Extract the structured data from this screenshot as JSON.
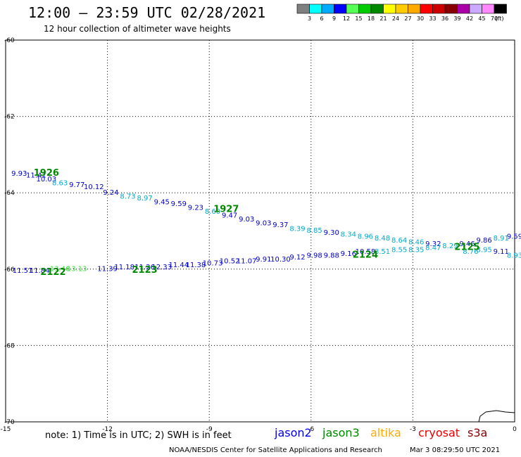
{
  "title": "12:00 – 23:59 UTC 02/28/2021",
  "subtitle": "12 hour collection of altimeter wave heights",
  "note": "note: 1) Time is in UTC; 2) SWH is in feet",
  "credit": "NOAA/NESDIS Center for Satellite Applications and Research",
  "timestamp": "Mar  3 08:29:50 UTC 2021",
  "color_scale": {
    "labels": [
      "3",
      "6",
      "9",
      "12",
      "15",
      "18",
      "21",
      "24",
      "27",
      "30",
      "33",
      "36",
      "39",
      "42",
      "45",
      "70"
    ],
    "unit": "(ft)",
    "colors": [
      "#7f7f7f",
      "#00ffff",
      "#00aaff",
      "#0000ff",
      "#55ff55",
      "#00cc00",
      "#008800",
      "#ffff00",
      "#ffcc00",
      "#ffaa00",
      "#ff0000",
      "#cc0000",
      "#880000",
      "#aa00aa",
      "#ccaaff",
      "#ff88ff",
      "#000000"
    ]
  },
  "satellites": [
    {
      "name": "jason2",
      "color": "#0000ee"
    },
    {
      "name": "jason3",
      "color": "#008800"
    },
    {
      "name": "altika",
      "color": "#ffaa00"
    },
    {
      "name": "cryosat",
      "color": "#ee0000"
    },
    {
      "name": "s3a",
      "color": "#880000"
    }
  ],
  "map": {
    "lon_range": [
      -15,
      0
    ],
    "lat_range": [
      -70,
      -60
    ],
    "lon_ticks": [
      "-15",
      "-12",
      "-9",
      "-6",
      "-3",
      "0"
    ],
    "lat_ticks": [
      "-60",
      "-62",
      "-64",
      "-66",
      "-68",
      "-70"
    ]
  },
  "observations": [
    {
      "lon": -14.6,
      "lat": -63.55,
      "label": "9.93",
      "color": "#0000cc"
    },
    {
      "lon": -14.1,
      "lat": -63.6,
      "label": "11.41",
      "color": "#0000cc"
    },
    {
      "lon": -13.8,
      "lat": -63.7,
      "label": "10.03",
      "color": "#0000cc"
    },
    {
      "lon": -13.4,
      "lat": -63.8,
      "label": "8.63",
      "color": "#00aacc"
    },
    {
      "lon": -12.9,
      "lat": -63.85,
      "label": "9.77",
      "color": "#0000cc"
    },
    {
      "lon": -12.4,
      "lat": -63.9,
      "label": "10.12",
      "color": "#0000cc"
    },
    {
      "lon": -11.9,
      "lat": -64.05,
      "label": "9.24",
      "color": "#0000cc"
    },
    {
      "lon": -11.4,
      "lat": -64.15,
      "label": "8.73",
      "color": "#00aacc"
    },
    {
      "lon": -10.9,
      "lat": -64.2,
      "label": "8.97",
      "color": "#00aacc"
    },
    {
      "lon": -10.4,
      "lat": -64.3,
      "label": "9.45",
      "color": "#0000cc"
    },
    {
      "lon": -9.9,
      "lat": -64.35,
      "label": "9.59",
      "color": "#0000cc"
    },
    {
      "lon": -9.4,
      "lat": -64.45,
      "label": "9.23",
      "color": "#0000cc"
    },
    {
      "lon": -8.9,
      "lat": -64.55,
      "label": "8.60",
      "color": "#00aacc"
    },
    {
      "lon": -8.4,
      "lat": -64.65,
      "label": "9.47",
      "color": "#0000cc"
    },
    {
      "lon": -7.9,
      "lat": -64.75,
      "label": "9.03",
      "color": "#0000cc"
    },
    {
      "lon": -7.4,
      "lat": -64.85,
      "label": "9.03",
      "color": "#0000cc"
    },
    {
      "lon": -6.9,
      "lat": -64.9,
      "label": "9.37",
      "color": "#0000cc"
    },
    {
      "lon": -6.4,
      "lat": -65.0,
      "label": "8.39",
      "color": "#00aacc"
    },
    {
      "lon": -5.9,
      "lat": -65.05,
      "label": "8.85",
      "color": "#00aacc"
    },
    {
      "lon": -5.4,
      "lat": -65.1,
      "label": "9.30",
      "color": "#0000cc"
    },
    {
      "lon": -4.9,
      "lat": -65.15,
      "label": "8.34",
      "color": "#00aacc"
    },
    {
      "lon": -4.4,
      "lat": -65.2,
      "label": "8.96",
      "color": "#00aacc"
    },
    {
      "lon": -3.9,
      "lat": -65.25,
      "label": "8.48",
      "color": "#00aacc"
    },
    {
      "lon": -3.4,
      "lat": -65.3,
      "label": "8.64",
      "color": "#00aacc"
    },
    {
      "lon": -2.9,
      "lat": -65.35,
      "label": "8.46",
      "color": "#00aacc"
    },
    {
      "lon": -2.4,
      "lat": -65.4,
      "label": "9.32",
      "color": "#0000cc"
    },
    {
      "lon": -1.9,
      "lat": -65.45,
      "label": "8.29",
      "color": "#00aacc"
    },
    {
      "lon": -1.4,
      "lat": -65.4,
      "label": "9.46",
      "color": "#0000cc"
    },
    {
      "lon": -0.9,
      "lat": -65.3,
      "label": "9.86",
      "color": "#0000cc"
    },
    {
      "lon": -0.4,
      "lat": -65.25,
      "label": "8.91",
      "color": "#00aacc"
    },
    {
      "lon": 0.0,
      "lat": -65.2,
      "label": "9.59",
      "color": "#0000cc"
    },
    {
      "lon": -1.3,
      "lat": -65.6,
      "label": "8.76",
      "color": "#00aacc"
    },
    {
      "lon": -0.9,
      "lat": -65.55,
      "label": "8.95",
      "color": "#00aacc"
    },
    {
      "lon": -0.4,
      "lat": -65.6,
      "label": "9.11",
      "color": "#0000cc"
    },
    {
      "lon": 0.0,
      "lat": -65.7,
      "label": "8.93",
      "color": "#00aacc"
    },
    {
      "lon": -14.5,
      "lat": -66.1,
      "label": "11.51",
      "color": "#0000cc"
    },
    {
      "lon": -14.0,
      "lat": -66.1,
      "label": "11.84",
      "color": "#0000cc"
    },
    {
      "lon": -13.4,
      "lat": -66.05,
      "label": "13.46",
      "color": "#33dd33"
    },
    {
      "lon": -12.9,
      "lat": -66.05,
      "label": "13.13",
      "color": "#33dd33"
    },
    {
      "lon": -12.0,
      "lat": -66.05,
      "label": "11.39",
      "color": "#0000cc"
    },
    {
      "lon": -11.5,
      "lat": -66.0,
      "label": "11.18",
      "color": "#0000cc"
    },
    {
      "lon": -10.9,
      "lat": -66.0,
      "label": "11.26",
      "color": "#0000cc"
    },
    {
      "lon": -10.4,
      "lat": -66.0,
      "label": "12.33",
      "color": "#0000cc"
    },
    {
      "lon": -9.9,
      "lat": -65.95,
      "label": "11.44",
      "color": "#0000cc"
    },
    {
      "lon": -9.4,
      "lat": -65.95,
      "label": "11.38",
      "color": "#0000cc"
    },
    {
      "lon": -8.9,
      "lat": -65.9,
      "label": "10.73",
      "color": "#0000cc"
    },
    {
      "lon": -8.4,
      "lat": -65.85,
      "label": "10.52",
      "color": "#0000cc"
    },
    {
      "lon": -7.9,
      "lat": -65.85,
      "label": "11.07",
      "color": "#0000cc"
    },
    {
      "lon": -7.4,
      "lat": -65.8,
      "label": "9.91",
      "color": "#0000cc"
    },
    {
      "lon": -6.9,
      "lat": -65.8,
      "label": "10.30",
      "color": "#0000cc"
    },
    {
      "lon": -6.4,
      "lat": -65.75,
      "label": "9.12",
      "color": "#0000cc"
    },
    {
      "lon": -5.9,
      "lat": -65.7,
      "label": "9.98",
      "color": "#0000cc"
    },
    {
      "lon": -5.4,
      "lat": -65.7,
      "label": "9.88",
      "color": "#0000cc"
    },
    {
      "lon": -4.9,
      "lat": -65.65,
      "label": "9.16",
      "color": "#0000cc"
    },
    {
      "lon": -4.4,
      "lat": -65.6,
      "label": "10.58",
      "color": "#0000cc"
    },
    {
      "lon": -3.9,
      "lat": -65.6,
      "label": "8.51",
      "color": "#00aacc"
    },
    {
      "lon": -3.4,
      "lat": -65.55,
      "label": "8.55",
      "color": "#00aacc"
    },
    {
      "lon": -2.9,
      "lat": -65.55,
      "label": "8.35",
      "color": "#00aacc"
    },
    {
      "lon": -2.4,
      "lat": -65.5,
      "label": "8.47",
      "color": "#00aacc"
    }
  ],
  "pass_times": [
    {
      "lon": -13.8,
      "lat": -63.55,
      "label": "1926"
    },
    {
      "lon": -8.5,
      "lat": -64.5,
      "label": "1927"
    },
    {
      "lon": -13.6,
      "lat": -66.15,
      "label": "2122"
    },
    {
      "lon": -10.9,
      "lat": -66.1,
      "label": "2123"
    },
    {
      "lon": -4.4,
      "lat": -65.7,
      "label": "2124"
    },
    {
      "lon": -1.4,
      "lat": -65.5,
      "label": "2125"
    }
  ]
}
